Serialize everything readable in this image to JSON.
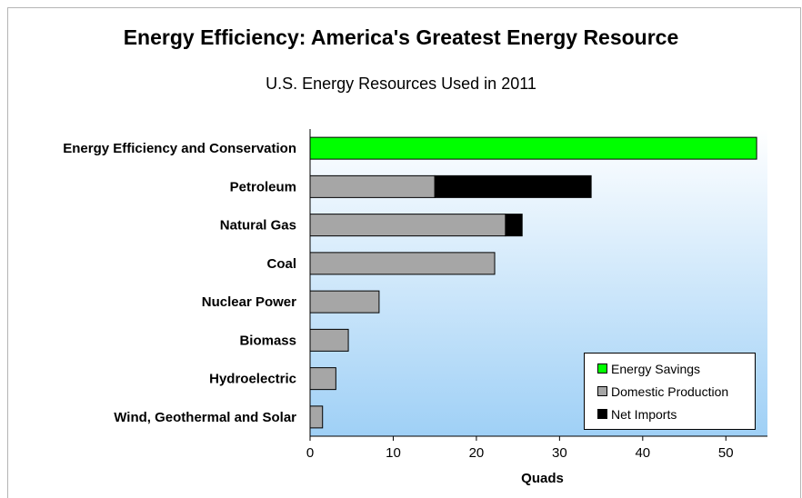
{
  "chart_data": {
    "type": "bar",
    "orientation": "horizontal",
    "stacked": true,
    "title": "Energy Efficiency: America's Greatest Energy Resource",
    "subtitle": "U.S. Energy Resources Used in 2011",
    "xlabel": "Quads",
    "ylabel": "",
    "xlim": [
      0,
      55
    ],
    "xticks": [
      "0",
      "10",
      "20",
      "30",
      "40",
      "50"
    ],
    "grid": false,
    "legend_position": "bottom-right",
    "categories": [
      "Energy Efficiency and Conservation",
      "Petroleum",
      "Natural Gas",
      "Coal",
      "Nuclear Power",
      "Biomass",
      "Hydroelectric",
      "Wind, Geothermal and Solar"
    ],
    "series": [
      {
        "name": "Energy Savings",
        "color": "#00ff00",
        "values": [
          53.7,
          0,
          0,
          0,
          0,
          0,
          0,
          0
        ]
      },
      {
        "name": "Domestic Production",
        "color": "#a6a6a6",
        "values": [
          0,
          15.0,
          23.5,
          22.2,
          8.3,
          4.6,
          3.1,
          1.5
        ]
      },
      {
        "name": "Net Imports",
        "color": "#000000",
        "values": [
          0,
          18.8,
          2.0,
          0,
          0,
          0,
          0,
          0
        ]
      }
    ]
  }
}
